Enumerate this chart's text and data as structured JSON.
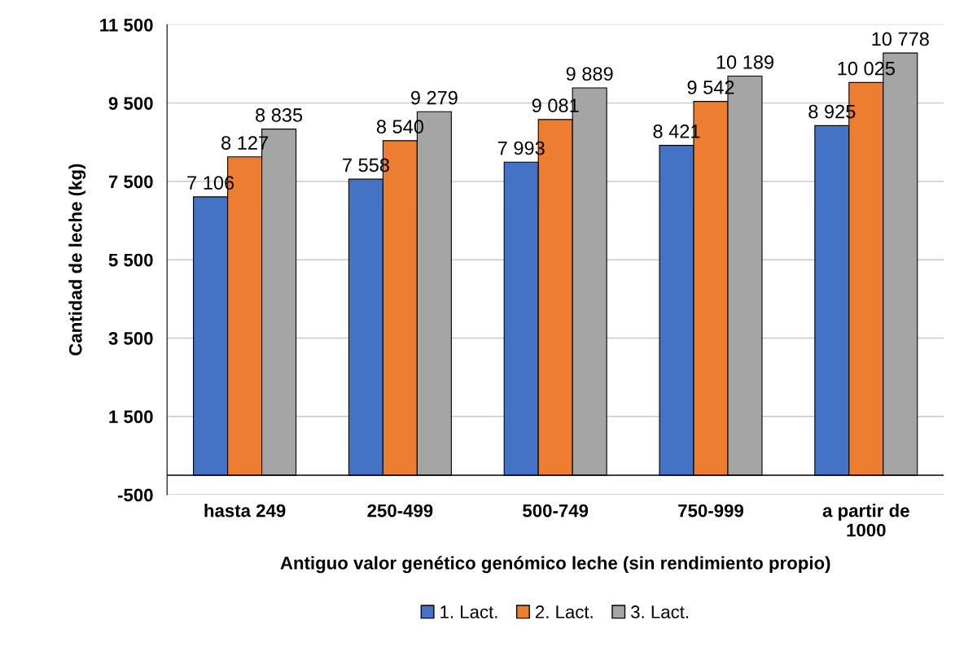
{
  "chart_data": {
    "type": "bar",
    "xlabel": "Antiguo valor genético genómico leche (sin rendimiento propio)",
    "ylabel": "Cantidad de leche (kg)",
    "categories": [
      "hasta 249",
      "250-499",
      "500-749",
      "750-999",
      "a partir de\n1000"
    ],
    "series": [
      {
        "name": "1. Lact.",
        "color": "#4472c4",
        "values": [
          7106,
          7558,
          7993,
          8421,
          8925
        ],
        "value_labels": [
          "7 106",
          "7 558",
          "7 993",
          "8 421",
          "8 925"
        ]
      },
      {
        "name": "2. Lact.",
        "color": "#ed7d31",
        "values": [
          8127,
          8540,
          9081,
          9542,
          10025
        ],
        "value_labels": [
          "8 127",
          "8 540",
          "9 081",
          "9 542",
          "10 025"
        ]
      },
      {
        "name": "3. Lact.",
        "color": "#a5a5a5",
        "values": [
          8835,
          9279,
          9889,
          10189,
          10778
        ],
        "value_labels": [
          "8 835",
          "9 279",
          "9 889",
          "10 189",
          "10 778"
        ]
      }
    ],
    "ylim": [
      -500,
      11500
    ],
    "yticks": [
      {
        "value": -500,
        "label": "-500"
      },
      {
        "value": 1500,
        "label": "1 500"
      },
      {
        "value": 3500,
        "label": "3 500"
      },
      {
        "value": 5500,
        "label": "5 500"
      },
      {
        "value": 7500,
        "label": "7 500"
      },
      {
        "value": 9500,
        "label": "9 500"
      },
      {
        "value": 11500,
        "label": "11 500"
      }
    ],
    "grid": "y",
    "legend": "bottom"
  }
}
